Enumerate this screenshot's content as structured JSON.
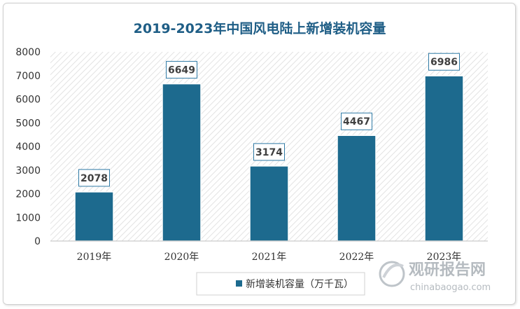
{
  "chart_data": {
    "type": "bar",
    "title": "2019-2023年中国风电陆上新增装机容量",
    "categories": [
      "2019年",
      "2020年",
      "2021年",
      "2022年",
      "2023年"
    ],
    "series": [
      {
        "name": "新增装机容量（万千瓦）",
        "values": [
          2078,
          6649,
          3174,
          4467,
          6986
        ],
        "color": "#1d6a8e"
      }
    ],
    "ylim": [
      0,
      8000
    ],
    "yticks": [
      0,
      1000,
      2000,
      3000,
      4000,
      5000,
      6000,
      7000,
      8000
    ],
    "xlabel": "",
    "ylabel": "",
    "grid": false,
    "legend_position": "bottom",
    "data_labels": true
  },
  "watermark": {
    "name": "观研报告网",
    "url": "chinabaogao.com"
  }
}
